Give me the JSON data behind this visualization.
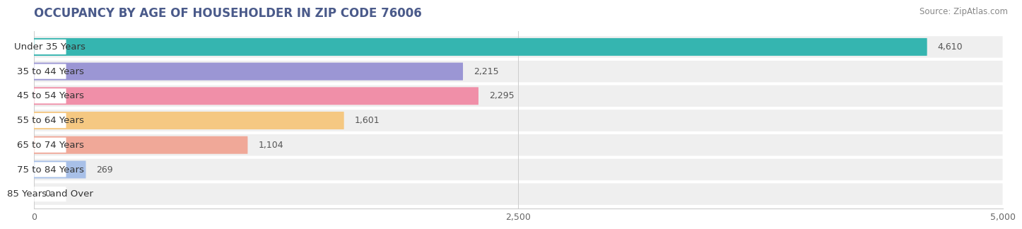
{
  "title": "OCCUPANCY BY AGE OF HOUSEHOLDER IN ZIP CODE 76006",
  "source": "Source: ZipAtlas.com",
  "categories": [
    "Under 35 Years",
    "35 to 44 Years",
    "45 to 54 Years",
    "55 to 64 Years",
    "65 to 74 Years",
    "75 to 84 Years",
    "85 Years and Over"
  ],
  "values": [
    4610,
    2215,
    2295,
    1601,
    1104,
    269,
    0
  ],
  "bar_colors": [
    "#35b5b0",
    "#9b96d4",
    "#f08fa8",
    "#f5c882",
    "#f0a898",
    "#a8c0e8",
    "#c8aadc"
  ],
  "row_bg_colors": [
    "#e8f7f6",
    "#eeedf8",
    "#fce8ec",
    "#fef4e0",
    "#fce8e4",
    "#e8eef8",
    "#f3ecf8"
  ],
  "xlim": [
    0,
    5000
  ],
  "xticks": [
    0,
    2500,
    5000
  ],
  "title_fontsize": 12,
  "source_fontsize": 8.5,
  "label_fontsize": 9.5,
  "value_fontsize": 9,
  "tick_fontsize": 9
}
